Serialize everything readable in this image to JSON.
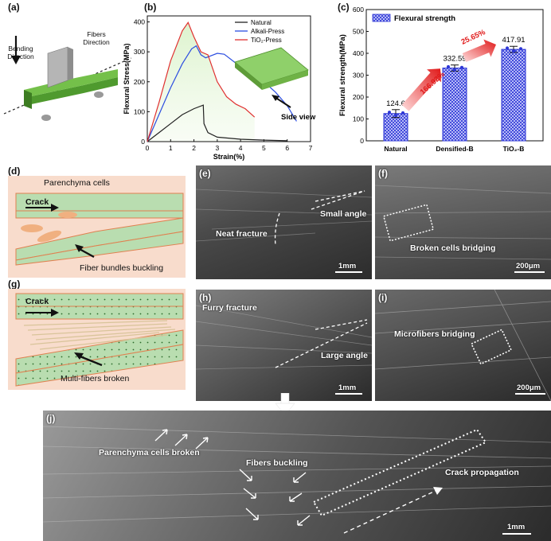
{
  "panel_labels": {
    "a": "(a)",
    "b": "(b)",
    "c": "(c)",
    "d": "(d)",
    "e": "(e)",
    "f": "(f)",
    "g": "(g)",
    "h": "(h)",
    "i": "(i)",
    "j": "(j)"
  },
  "panel_a": {
    "bending_direction": "Bending Direction",
    "fibers_direction": "Fibers Direction"
  },
  "panel_b": {
    "ylabel": "Flexural Stress(MPa)",
    "xlabel": "Strain(%)",
    "side_view": "Side view",
    "legend": [
      "Natural",
      "Alkali-Press",
      "TiO₂-Press"
    ],
    "colors": {
      "Natural": "#222222",
      "Alkali-Press": "#2b4de0",
      "TiO2-Press": "#e03030"
    }
  },
  "panel_c": {
    "ylabel": "Flexural strength(MPa)",
    "legend": "Flexural strength",
    "bar_value_labels": [
      "124.6",
      "332.59",
      "417.91"
    ],
    "increase_labels": [
      "166.92%",
      "25.65%"
    ]
  },
  "chart_data": [
    {
      "type": "line",
      "xlabel": "Strain(%)",
      "ylabel": "Flexural Stress(MPa)",
      "xlim": [
        0,
        7
      ],
      "ylim": [
        0,
        420
      ],
      "xticks": [
        0,
        1,
        2,
        3,
        4,
        5,
        6,
        7
      ],
      "yticks": [
        0,
        100,
        200,
        300,
        400
      ],
      "legend_position": "top-right",
      "series": [
        {
          "name": "Natural",
          "color": "#222222",
          "x": [
            0,
            0.5,
            1.0,
            1.5,
            2.0,
            2.4,
            2.43,
            2.6,
            3.0,
            4.0,
            5.0,
            6.0
          ],
          "y": [
            0,
            30,
            60,
            90,
            110,
            122,
            60,
            30,
            15,
            8,
            5,
            3
          ]
        },
        {
          "name": "Alkali-Press",
          "color": "#2b4de0",
          "x": [
            0,
            0.5,
            1.0,
            1.5,
            1.9,
            2.1,
            2.3,
            2.5,
            3.0,
            3.3,
            4.0,
            5.0,
            5.5,
            6.0,
            6.4
          ],
          "y": [
            0,
            90,
            180,
            260,
            310,
            320,
            290,
            280,
            295,
            292,
            250,
            200,
            165,
            120,
            68
          ]
        },
        {
          "name": "TiO₂-Press",
          "color": "#e03030",
          "x": [
            0,
            0.5,
            1.0,
            1.5,
            1.75,
            2.0,
            2.3,
            2.6,
            3.0,
            3.4,
            3.8,
            4.2,
            4.6
          ],
          "y": [
            0,
            130,
            270,
            370,
            398,
            350,
            300,
            290,
            200,
            150,
            125,
            110,
            82
          ]
        }
      ]
    },
    {
      "type": "bar",
      "categories": [
        "Natural",
        "Densified-B",
        "TiO₂-B"
      ],
      "values": [
        124.6,
        332.59,
        417.91
      ],
      "errors": [
        18,
        14,
        14
      ],
      "ylabel": "Flexural strength(MPa)",
      "ylim": [
        0,
        600
      ],
      "yticks": [
        0,
        100,
        200,
        300,
        400,
        500,
        600
      ],
      "series": [
        {
          "name": "Flexural strength",
          "values": [
            124.6,
            332.59,
            417.91
          ]
        }
      ]
    }
  ],
  "panel_d": {
    "title": "Parenchyma cells",
    "crack": "Crack",
    "note": "Fiber bundles buckling"
  },
  "panel_g": {
    "crack": "Crack",
    "note": "Multi-fibers broken"
  },
  "panel_e": {
    "neat": "Neat fracture",
    "small_angle": "Small angle",
    "scale": "1mm"
  },
  "panel_f": {
    "text": "Broken cells bridging",
    "scale": "200μm"
  },
  "panel_h": {
    "furry": "Furry fracture",
    "large_angle": "Large angle",
    "scale": "1mm"
  },
  "panel_i": {
    "text": "Microfibers bridging",
    "scale": "200μm"
  },
  "panel_j": {
    "parenchyma": "Parenchyma cells broken",
    "fibers": "Fibers buckling",
    "crack": "Crack propagation",
    "scale": "1mm"
  }
}
